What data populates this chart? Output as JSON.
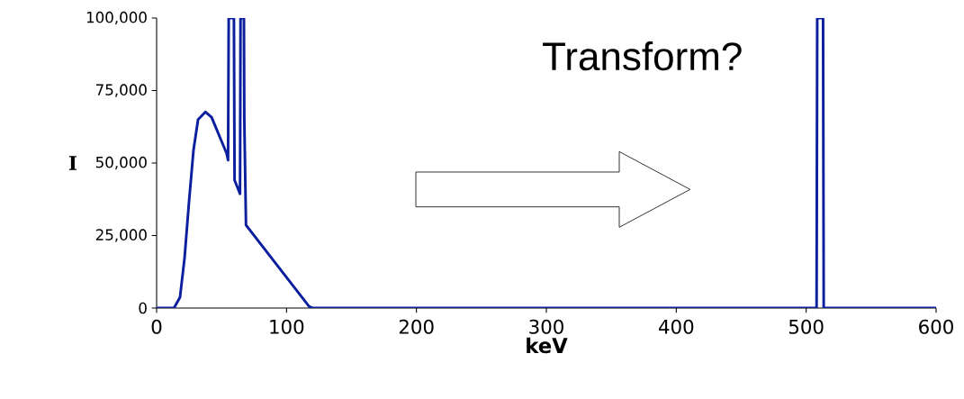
{
  "chart_data": {
    "type": "line",
    "xlabel": "keV",
    "ylabel": "I",
    "annotations": [
      "Transform?"
    ],
    "x": [
      0,
      13.4,
      18,
      21.5,
      25,
      28.4,
      31.9,
      37.6,
      42.3,
      53.8,
      55,
      55.5,
      59.5,
      60,
      64.2,
      64.6,
      67.2,
      67.5,
      68.8,
      117.3,
      120,
      508,
      508.5,
      513,
      513.5,
      600
    ],
    "series": [
      {
        "color": "#0a1e9e",
        "values": [
          0,
          0,
          3700,
          17200,
          37000,
          54500,
          65000,
          67600,
          65800,
          53400,
          51000,
          100000,
          100000,
          44100,
          39400,
          100000,
          100000,
          65000,
          28600,
          600,
          0,
          0,
          100000,
          100000,
          0,
          0
        ]
      }
    ],
    "xlim": [
      0,
      600
    ],
    "ylim": [
      0,
      100000
    ],
    "xticks": [
      0,
      100,
      200,
      300,
      400,
      500,
      600
    ],
    "yticks": [
      {
        "value": 0,
        "label": "0"
      },
      {
        "value": 25000,
        "label": "25,000"
      },
      {
        "value": 50000,
        "label": "50,000"
      },
      {
        "value": 75000,
        "label": "75,000"
      },
      {
        "value": 100000,
        "label": "100,000"
      }
    ],
    "grid": false,
    "legend": false,
    "marker": "none",
    "line_style": "solid"
  }
}
